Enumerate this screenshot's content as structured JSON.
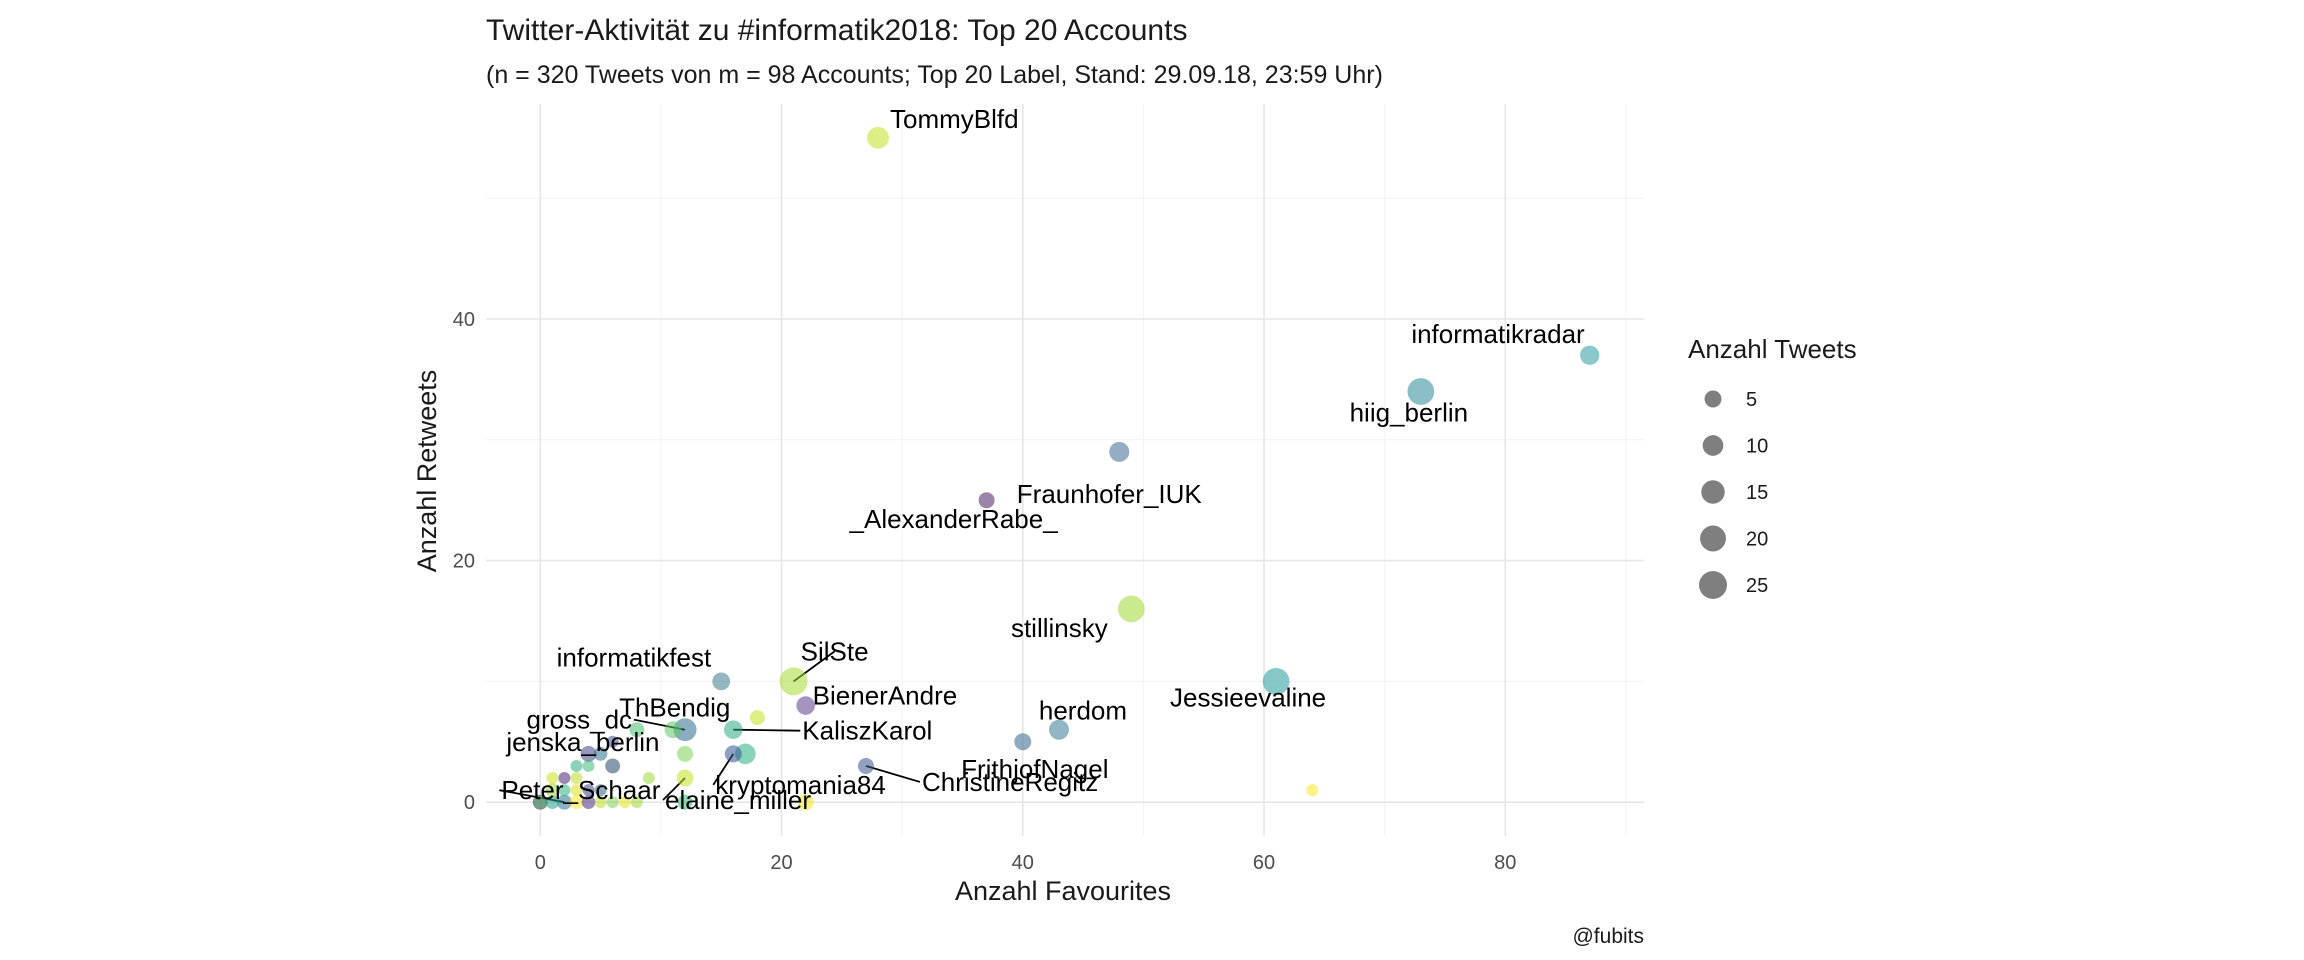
{
  "chart_data": {
    "type": "scatter",
    "title": "Twitter-Aktivität zu #informatik2018: Top 20 Accounts",
    "subtitle": "(n = 320 Tweets von m = 98 Accounts; Top 20 Label, Stand: 29.09.18, 23:59 Uhr)",
    "xlabel": "Anzahl Favourites",
    "ylabel": "Anzahl Retweets",
    "xlim": [
      -4.5,
      91.5
    ],
    "ylim": [
      -2.8,
      57.8
    ],
    "x_ticks": [
      0,
      20,
      40,
      60,
      80
    ],
    "y_ticks": [
      0,
      20,
      40
    ],
    "grid": true,
    "caption": "@fubits",
    "legend": {
      "title": "Anzahl Tweets",
      "position": "right",
      "values": [
        5,
        10,
        15,
        20,
        25
      ]
    },
    "labeled_points": [
      {
        "label": "TommyBlfd",
        "x": 28,
        "y": 55,
        "tweets": 12,
        "color": "#c2df23"
      },
      {
        "label": "informatikradar",
        "x": 87,
        "y": 37,
        "tweets": 8,
        "color": "#2a9d9f"
      },
      {
        "label": "hiig_berlin",
        "x": 73,
        "y": 34,
        "tweets": 22,
        "color": "#2a8a99"
      },
      {
        "label": "Fraunhofer_IUK",
        "x": 48,
        "y": 29,
        "tweets": 9,
        "color": "#3e6a8f"
      },
      {
        "label": "_AlexanderRabe_",
        "x": 37,
        "y": 25,
        "tweets": 4,
        "color": "#4b1d62"
      },
      {
        "label": "stillinsky",
        "x": 49,
        "y": 16,
        "tweets": 22,
        "color": "#a0d933"
      },
      {
        "label": "Jessieevaline",
        "x": 61,
        "y": 10,
        "tweets": 22,
        "color": "#239a9a"
      },
      {
        "label": "SilSte",
        "x": 21,
        "y": 10,
        "tweets": 25,
        "color": "#a8db34"
      },
      {
        "label": "informatikfest",
        "x": 15,
        "y": 10,
        "tweets": 6,
        "color": "#3b7a8c"
      },
      {
        "label": "BienerAndre",
        "x": 22,
        "y": 8,
        "tweets": 7,
        "color": "#5c3c8b"
      },
      {
        "label": "ThBendig",
        "x": 18,
        "y": 7,
        "tweets": 3,
        "color": "#c5e021"
      },
      {
        "label": "gross_dc",
        "x": 12,
        "y": 6,
        "tweets": 14,
        "color": "#2e6a8e"
      },
      {
        "label": "KaliszKarol",
        "x": 16,
        "y": 6,
        "tweets": 7,
        "color": "#29a985"
      },
      {
        "label": "herdom",
        "x": 43,
        "y": 6,
        "tweets": 9,
        "color": "#3a7a98"
      },
      {
        "label": "FrithjofNagel",
        "x": 40,
        "y": 5,
        "tweets": 5,
        "color": "#34648f"
      },
      {
        "label": "jenska_berlin",
        "x": 4,
        "y": 4,
        "tweets": 4,
        "color": "#414487"
      },
      {
        "label": "kryptomania84",
        "x": 16,
        "y": 4,
        "tweets": 5,
        "color": "#31548e"
      },
      {
        "label": "elaine_miller",
        "x": 12,
        "y": 2,
        "tweets": 5,
        "color": "#c8e020"
      },
      {
        "label": "ChristineRegitz",
        "x": 27,
        "y": 3,
        "tweets": 4,
        "color": "#3b528b"
      },
      {
        "label": "Peter_Schaar",
        "x": 2,
        "y": 0,
        "tweets": 3,
        "color": "#2c738e"
      }
    ],
    "other_points": [
      {
        "x": 64,
        "y": 1,
        "tweets": 1,
        "color": "#fde725"
      },
      {
        "x": 22,
        "y": 0,
        "tweets": 4,
        "color": "#f1e51d"
      },
      {
        "x": 17,
        "y": 4,
        "tweets": 10,
        "color": "#28ae80"
      },
      {
        "x": 12,
        "y": 0,
        "tweets": 3,
        "color": "#35b779"
      },
      {
        "x": 12,
        "y": 4,
        "tweets": 4,
        "color": "#7ad151"
      },
      {
        "x": 11,
        "y": 6,
        "tweets": 5,
        "color": "#5ec962"
      },
      {
        "x": 8,
        "y": 6,
        "tweets": 3,
        "color": "#4ac16d"
      },
      {
        "x": 6,
        "y": 3,
        "tweets": 3,
        "color": "#26456e"
      },
      {
        "x": 5,
        "y": 4,
        "tweets": 2,
        "color": "#2d718e"
      },
      {
        "x": 4,
        "y": 3,
        "tweets": 1,
        "color": "#3dbc74"
      },
      {
        "x": 3,
        "y": 3,
        "tweets": 1,
        "color": "#29af7f"
      },
      {
        "x": 2,
        "y": 2,
        "tweets": 1,
        "color": "#482475"
      },
      {
        "x": 3,
        "y": 2,
        "tweets": 1,
        "color": "#bddf26"
      },
      {
        "x": 1,
        "y": 1,
        "tweets": 2,
        "color": "#9dd93b"
      },
      {
        "x": 2,
        "y": 1,
        "tweets": 1,
        "color": "#2db27d"
      },
      {
        "x": 3,
        "y": 1,
        "tweets": 1,
        "color": "#d8e219"
      },
      {
        "x": 4,
        "y": 1,
        "tweets": 1,
        "color": "#404688"
      },
      {
        "x": 5,
        "y": 1,
        "tweets": 1,
        "color": "#31688e"
      },
      {
        "x": 0,
        "y": 0,
        "tweets": 3,
        "color": "#440154"
      },
      {
        "x": 0,
        "y": 0,
        "tweets": 2,
        "color": "#52c569"
      },
      {
        "x": 1,
        "y": 0,
        "tweets": 2,
        "color": "#1fa187"
      },
      {
        "x": 3,
        "y": 0,
        "tweets": 2,
        "color": "#fde725"
      },
      {
        "x": 4,
        "y": 0,
        "tweets": 2,
        "color": "#472d7b"
      },
      {
        "x": 5,
        "y": 0,
        "tweets": 1,
        "color": "#c0df25"
      },
      {
        "x": 6,
        "y": 0,
        "tweets": 1,
        "color": "#7fd34e"
      },
      {
        "x": 7,
        "y": 0,
        "tweets": 1,
        "color": "#e5e419"
      },
      {
        "x": 8,
        "y": 0,
        "tweets": 1,
        "color": "#a2da37"
      },
      {
        "x": 9,
        "y": 2,
        "tweets": 1,
        "color": "#9bd93c"
      },
      {
        "x": 1,
        "y": 2,
        "tweets": 1,
        "color": "#d2e21b"
      },
      {
        "x": 6,
        "y": 5,
        "tweets": 1,
        "color": "#3e4c8a"
      }
    ]
  }
}
